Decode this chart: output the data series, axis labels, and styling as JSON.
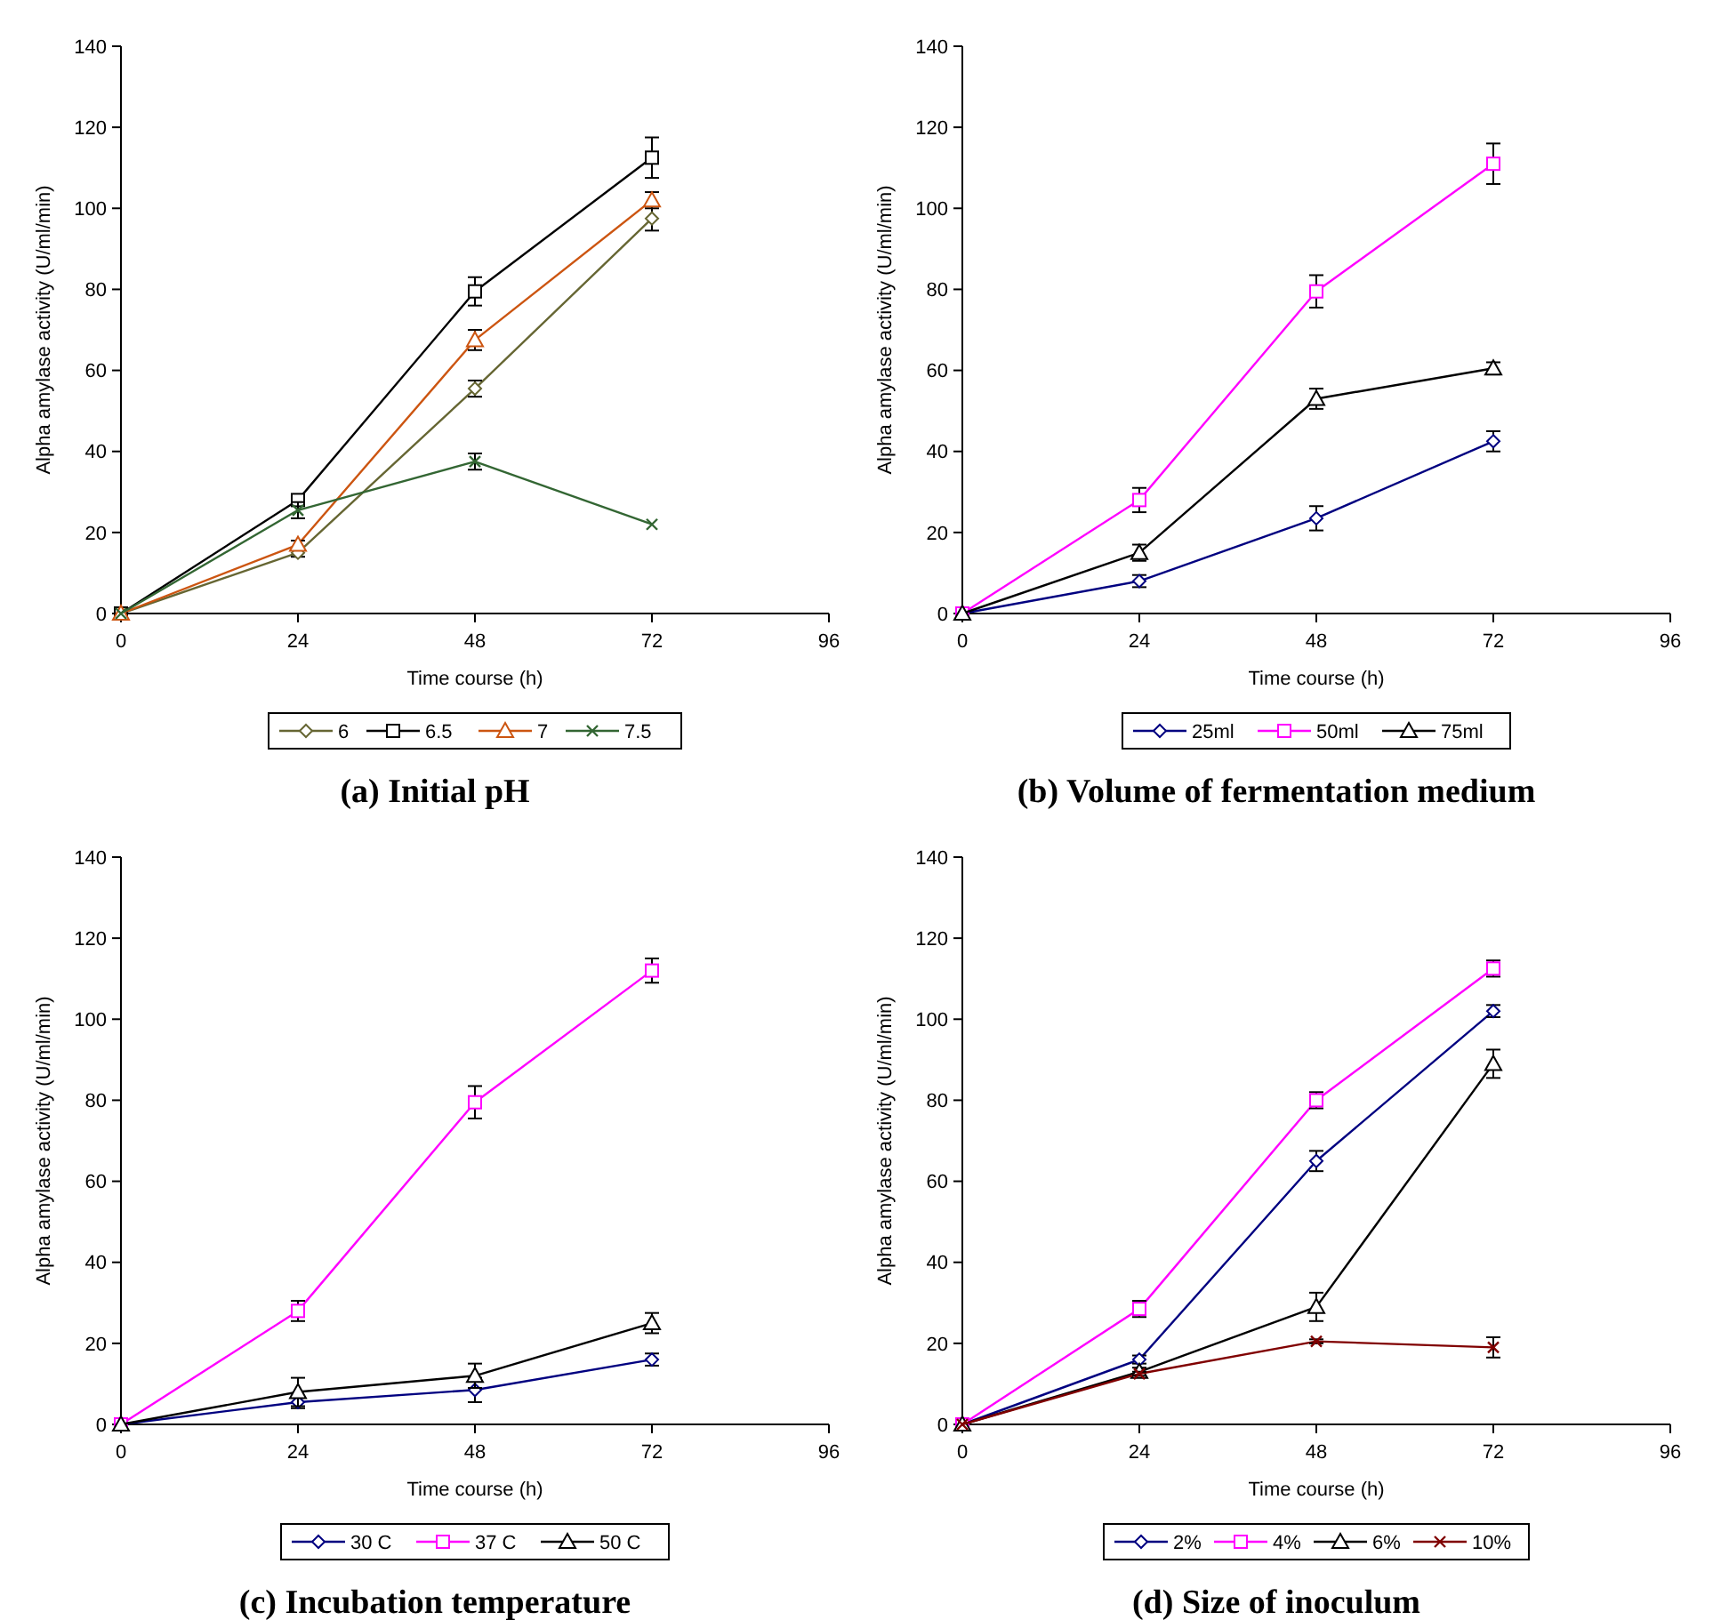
{
  "chart_data": [
    {
      "type": "line",
      "title": "(a) Initial pH",
      "xlabel": "Time course (h)",
      "ylabel": "Alpha amylase activity (U/ml/min)",
      "x": [
        0,
        24,
        48,
        72
      ],
      "xlim": [
        0,
        96
      ],
      "xticks": [
        0,
        24,
        48,
        72,
        96
      ],
      "ylim": [
        0,
        140
      ],
      "yticks": [
        0,
        20,
        40,
        60,
        80,
        100,
        120,
        140
      ],
      "grid": false,
      "legend": "bottom",
      "series": [
        {
          "name": "6",
          "color": "#666633",
          "marker": "diamond",
          "values": [
            0,
            15,
            55.5,
            97.5
          ],
          "errors": [
            null,
            1,
            2,
            3
          ]
        },
        {
          "name": "6.5",
          "color": "#000000",
          "marker": "square",
          "values": [
            0,
            28,
            79.5,
            112.5
          ],
          "errors": [
            null,
            1,
            3.5,
            5
          ]
        },
        {
          "name": "7",
          "color": "#cc5511",
          "marker": "triangle",
          "values": [
            0,
            17,
            67.5,
            102
          ],
          "errors": [
            null,
            1,
            2.5,
            2
          ]
        },
        {
          "name": "7.5",
          "color": "#336633",
          "marker": "cross",
          "values": [
            0,
            25.5,
            37.5,
            22
          ],
          "errors": [
            null,
            2,
            2,
            null
          ]
        }
      ]
    },
    {
      "type": "line",
      "title": "(b) Volume of fermentation medium",
      "xlabel": "Time course (h)",
      "ylabel": "Alpha amylase activity (U/ml/min)",
      "x": [
        0,
        24,
        48,
        72
      ],
      "xlim": [
        0,
        96
      ],
      "xticks": [
        0,
        24,
        48,
        72,
        96
      ],
      "ylim": [
        0,
        140
      ],
      "yticks": [
        0,
        20,
        40,
        60,
        80,
        100,
        120,
        140
      ],
      "grid": false,
      "legend": "bottom",
      "series": [
        {
          "name": "25ml",
          "color": "#000080",
          "marker": "diamond",
          "values": [
            0,
            8,
            23.5,
            42.5
          ],
          "errors": [
            null,
            1.5,
            3,
            2.5
          ]
        },
        {
          "name": "50ml",
          "color": "#ff00ff",
          "marker": "square",
          "values": [
            0,
            28,
            79.5,
            111
          ],
          "errors": [
            null,
            3,
            4,
            5
          ]
        },
        {
          "name": "75ml",
          "color": "#000000",
          "marker": "triangle",
          "values": [
            0,
            15,
            53,
            60.5
          ],
          "errors": [
            null,
            2,
            2.5,
            1.5
          ]
        }
      ]
    },
    {
      "type": "line",
      "title": "(c) Incubation temperature",
      "xlabel": "Time course (h)",
      "ylabel": "Alpha amylase activity (U/ml/min)",
      "x": [
        0,
        24,
        48,
        72
      ],
      "xlim": [
        0,
        96
      ],
      "xticks": [
        0,
        24,
        48,
        72,
        96
      ],
      "ylim": [
        0,
        140
      ],
      "yticks": [
        0,
        20,
        40,
        60,
        80,
        100,
        120,
        140
      ],
      "grid": false,
      "legend": "bottom",
      "series": [
        {
          "name": "30 C",
          "color": "#000080",
          "marker": "diamond",
          "values": [
            0,
            5.5,
            8.5,
            16
          ],
          "errors": [
            null,
            1.5,
            3,
            1.5
          ]
        },
        {
          "name": "37 C",
          "color": "#ff00ff",
          "marker": "square",
          "values": [
            0,
            28,
            79.5,
            112
          ],
          "errors": [
            null,
            2.5,
            4,
            3
          ]
        },
        {
          "name": "50 C",
          "color": "#000000",
          "marker": "triangle",
          "values": [
            0,
            8,
            12,
            25
          ],
          "errors": [
            null,
            3.5,
            3,
            2.5
          ]
        }
      ]
    },
    {
      "type": "line",
      "title": "(d) Size of inoculum",
      "xlabel": "Time course (h)",
      "ylabel": "Alpha amylase activity (U/ml/min)",
      "x": [
        0,
        24,
        48,
        72
      ],
      "xlim": [
        0,
        96
      ],
      "xticks": [
        0,
        24,
        48,
        72,
        96
      ],
      "ylim": [
        0,
        140
      ],
      "yticks": [
        0,
        20,
        40,
        60,
        80,
        100,
        120,
        140
      ],
      "grid": false,
      "legend": "bottom",
      "series": [
        {
          "name": "2%",
          "color": "#000080",
          "marker": "diamond",
          "values": [
            0,
            16,
            65,
            102
          ],
          "errors": [
            null,
            1,
            2.5,
            1.5
          ]
        },
        {
          "name": "4%",
          "color": "#ff00ff",
          "marker": "square",
          "values": [
            0,
            28.5,
            80,
            112.5
          ],
          "errors": [
            null,
            2,
            2,
            2
          ]
        },
        {
          "name": "6%",
          "color": "#000000",
          "marker": "triangle",
          "values": [
            0,
            13,
            29,
            89
          ],
          "errors": [
            null,
            1,
            3.5,
            3.5
          ]
        },
        {
          "name": "10%",
          "color": "#800000",
          "marker": "cross",
          "values": [
            0,
            12.5,
            20.5,
            19
          ],
          "errors": [
            null,
            0.5,
            0.5,
            2.5
          ]
        }
      ]
    }
  ]
}
